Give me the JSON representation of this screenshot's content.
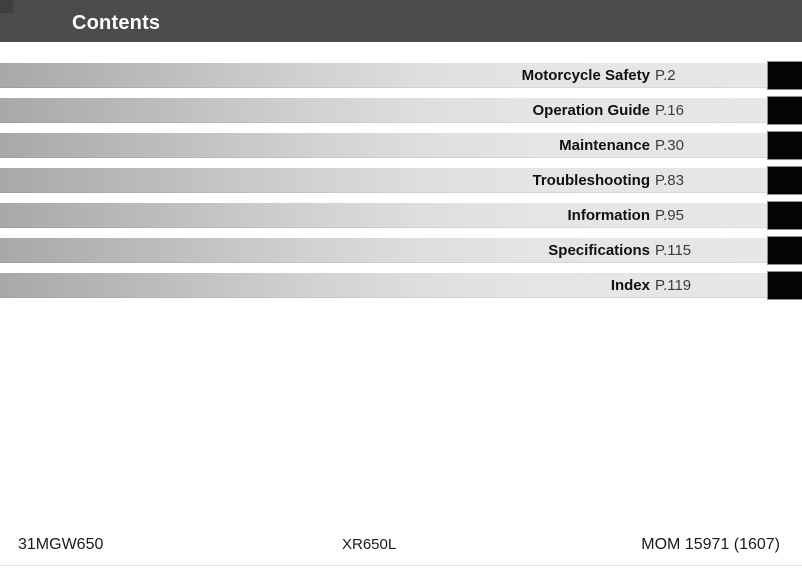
{
  "header": {
    "title": "Contents"
  },
  "toc": {
    "items": [
      {
        "label": "Motorcycle Safety",
        "page": "P.2"
      },
      {
        "label": "Operation Guide",
        "page": "P.16"
      },
      {
        "label": "Maintenance",
        "page": "P.30"
      },
      {
        "label": "Troubleshooting",
        "page": "P.83"
      },
      {
        "label": "Information",
        "page": "P.95"
      },
      {
        "label": "Specifications",
        "page": "P.115"
      },
      {
        "label": "Index",
        "page": "P.119"
      }
    ]
  },
  "footer": {
    "left": "31MGW650",
    "center": "XR650L",
    "right": "MOM 15971 (1607)"
  },
  "colors": {
    "header_bg": "#4b4b4b",
    "bar_gradient_start": "#a8a8a8",
    "bar_gradient_end": "#e7e7e7",
    "tab": "#040404",
    "title_text": "#ffffff"
  }
}
